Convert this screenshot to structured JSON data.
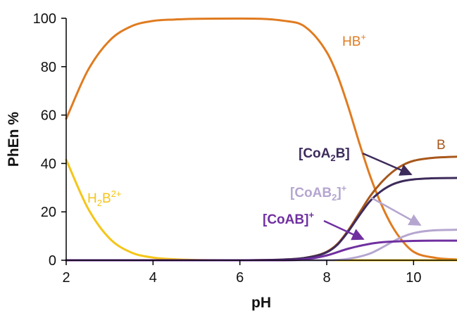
{
  "chart_data": {
    "type": "line",
    "xlabel": "pH",
    "ylabel": "PhEn %",
    "xlim": [
      2,
      11
    ],
    "ylim": [
      0,
      100
    ],
    "x_ticks": [
      "2",
      "4",
      "6",
      "8",
      "10"
    ],
    "y_ticks": [
      "0",
      "20",
      "40",
      "60",
      "80",
      "100"
    ],
    "grid": false,
    "series": [
      {
        "name": "HB⁺",
        "label_parts": [
          [
            "HB",
            "normal"
          ],
          [
            "+",
            "sup"
          ]
        ],
        "label_weight": "normal",
        "color": "#E07B20",
        "x": [
          2,
          2.5,
          3,
          3.5,
          4,
          4.5,
          5,
          6,
          7,
          7.5,
          8,
          8.25,
          8.5,
          8.75,
          9,
          9.25,
          9.5,
          9.75,
          10,
          10.5,
          11
        ],
        "y": [
          58.5,
          78.5,
          90.8,
          96.7,
          98.9,
          99.5,
          99.8,
          99.9,
          99.0,
          96.5,
          86.0,
          76.3,
          63.2,
          48.5,
          34.8,
          23.4,
          14.3,
          7.8,
          3.5,
          1.0,
          0.3
        ]
      },
      {
        "name": "H₂B²⁺",
        "label_parts": [
          [
            "H",
            "normal"
          ],
          [
            "2",
            "sub"
          ],
          [
            "B",
            "normal"
          ],
          [
            "2+",
            "sup"
          ]
        ],
        "label_weight": "normal",
        "color": "#F5C518",
        "x": [
          2,
          2.5,
          3,
          3.5,
          4,
          4.5,
          5,
          6,
          7,
          8,
          9,
          10,
          11
        ],
        "y": [
          41.5,
          21.5,
          9.0,
          3.2,
          1.1,
          0.4,
          0.1,
          0,
          0,
          0,
          0,
          0,
          0
        ]
      },
      {
        "name": "B",
        "label_parts": [
          [
            "B",
            "normal"
          ]
        ],
        "label_weight": "normal",
        "color": "#A8571B",
        "x": [
          2,
          6,
          7,
          7.5,
          8,
          8.25,
          8.5,
          8.75,
          9,
          9.25,
          9.5,
          9.75,
          10,
          10.5,
          11
        ],
        "y": [
          0,
          0,
          0.3,
          1.0,
          3.5,
          6.8,
          12.5,
          19.5,
          26.5,
          32.0,
          36.3,
          39.3,
          41.1,
          42.4,
          42.8
        ]
      },
      {
        "name": "[CoA₂B]",
        "label_parts": [
          [
            "[CoA",
            "normal"
          ],
          [
            "2",
            "sub"
          ],
          [
            "B]",
            "normal"
          ]
        ],
        "label_weight": "bold",
        "color": "#3D2B5B",
        "x": [
          2,
          6,
          7,
          7.5,
          8,
          8.25,
          8.5,
          8.75,
          9,
          9.25,
          9.5,
          9.75,
          10,
          10.5,
          11
        ],
        "y": [
          0,
          0,
          0.3,
          1.0,
          3.3,
          6.5,
          12.0,
          18.5,
          24.5,
          28.5,
          31.2,
          32.7,
          33.4,
          33.9,
          34.0
        ]
      },
      {
        "name": "[CoAB₂]⁺",
        "label_parts": [
          [
            "[CoAB",
            "normal"
          ],
          [
            "2",
            "sub"
          ],
          [
            "]",
            "normal"
          ],
          [
            "+",
            "sup"
          ]
        ],
        "label_weight": "bold",
        "color": "#B5A6D0",
        "x": [
          2,
          7,
          8,
          8.5,
          9,
          9.25,
          9.5,
          9.75,
          10,
          10.25,
          10.5,
          11
        ],
        "y": [
          0,
          0,
          0,
          0.6,
          2.8,
          5.0,
          7.5,
          9.7,
          11.2,
          12.0,
          12.4,
          12.6
        ]
      },
      {
        "name": "[CoAB]⁺",
        "label_parts": [
          [
            "[CoAB]",
            "normal"
          ],
          [
            "+",
            "sup"
          ]
        ],
        "label_weight": "bold",
        "color": "#7030A0",
        "x": [
          2,
          7,
          7.5,
          8,
          8.5,
          9,
          9.25,
          9.5,
          10,
          10.5,
          11
        ],
        "y": [
          0,
          0,
          0.4,
          2.0,
          4.8,
          6.8,
          7.4,
          7.7,
          8.0,
          8.1,
          8.1
        ]
      }
    ]
  }
}
